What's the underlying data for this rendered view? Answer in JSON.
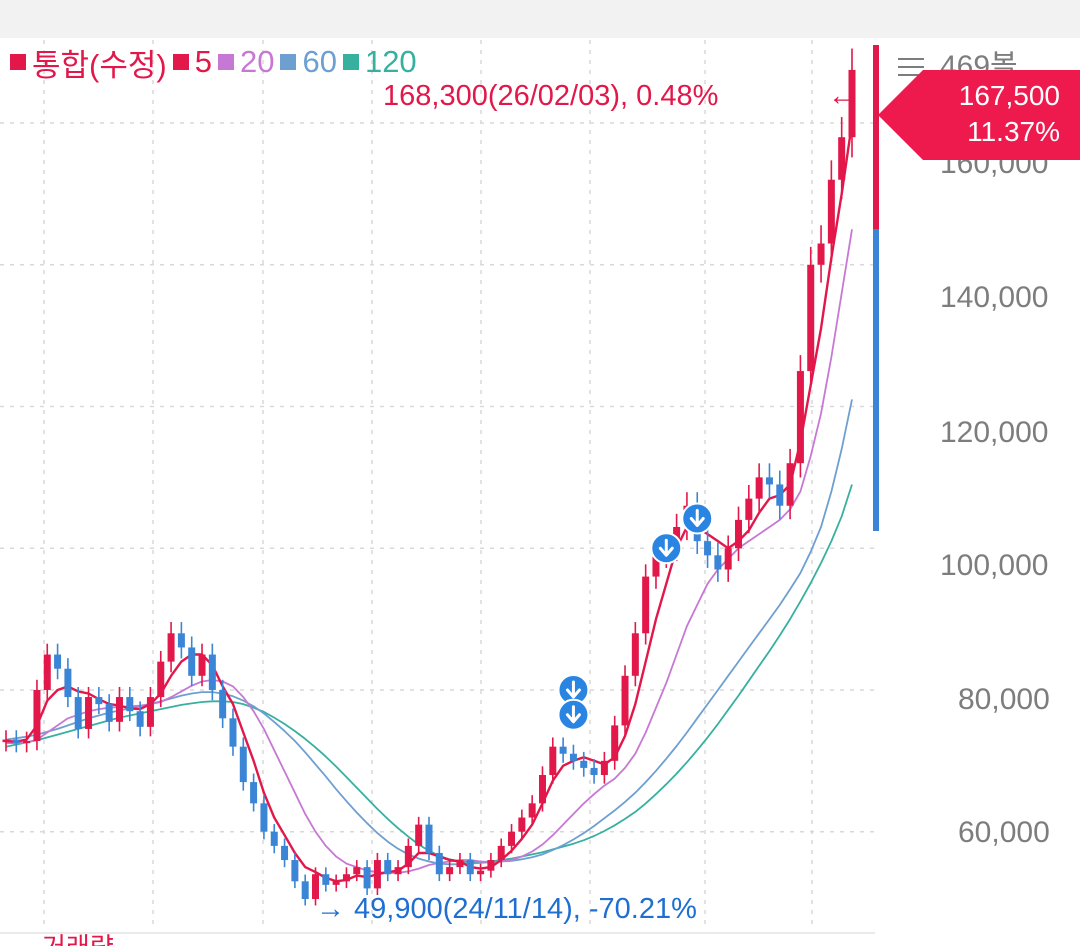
{
  "chart_data": {
    "type": "line",
    "title": "통합(수정)",
    "legend": [
      {
        "key": "price",
        "label": "통합(수정)",
        "color": "#e2174a"
      },
      {
        "key": "ma5",
        "label": "5",
        "color": "#e2174a"
      },
      {
        "key": "ma20",
        "label": "20",
        "color": "#c778d4"
      },
      {
        "key": "ma60",
        "label": "60",
        "color": "#6e9fd1"
      },
      {
        "key": "ma120",
        "label": "120",
        "color": "#37b0a0"
      }
    ],
    "ylim": [
      45000,
      172000
    ],
    "y_ticks": [
      {
        "value": 60000,
        "label": "60,000"
      },
      {
        "value": 80000,
        "label": "80,000"
      },
      {
        "value": 100000,
        "label": "100,000"
      },
      {
        "value": 120000,
        "label": "120,000"
      },
      {
        "value": 140000,
        "label": "140,000"
      },
      {
        "value": 160000,
        "label": "160,000"
      }
    ],
    "y_tick_partial": "469볼",
    "series": [
      {
        "name": "price",
        "style": "candles",
        "values": [
          73000,
          72500,
          72800,
          80000,
          85000,
          83000,
          79000,
          74500,
          79000,
          78000,
          75500,
          79000,
          77000,
          74800,
          79000,
          84000,
          88000,
          86000,
          82000,
          85000,
          80000,
          76000,
          72000,
          67000,
          64000,
          60000,
          58000,
          56000,
          53000,
          50500,
          54000,
          52500,
          53000,
          54000,
          55000,
          52000,
          56000,
          54000,
          55000,
          58000,
          61000,
          57000,
          54000,
          55000,
          56000,
          54000,
          54500,
          56000,
          58000,
          60000,
          62000,
          64000,
          68000,
          72000,
          71000,
          70000,
          69000,
          68000,
          70000,
          75000,
          82000,
          88000,
          96000,
          99000,
          100000,
          103000,
          106000,
          101000,
          99000,
          97000,
          100000,
          104000,
          107000,
          110000,
          109000,
          106000,
          112000,
          125000,
          140000,
          143000,
          152000,
          158000,
          167500
        ]
      },
      {
        "name": "ma5",
        "values": [
          72800,
          72700,
          73000,
          75000,
          78500,
          80000,
          80500,
          79800,
          79500,
          78700,
          78000,
          77800,
          77400,
          77300,
          78000,
          79500,
          82000,
          84000,
          85000,
          85000,
          83500,
          80500,
          78000,
          74000,
          70000,
          65500,
          62000,
          59500,
          57000,
          55000,
          54300,
          53500,
          53000,
          53200,
          53800,
          53600,
          54000,
          54300,
          54500,
          55500,
          57000,
          57000,
          56500,
          56000,
          55800,
          55000,
          54800,
          55000,
          56000,
          57300,
          59000,
          61000,
          64000,
          67200,
          69300,
          70000,
          70500,
          70000,
          69500,
          70500,
          73500,
          78000,
          84000,
          90000,
          95000,
          100000,
          103000,
          103000,
          102000,
          101000,
          100000,
          101000,
          102500,
          105000,
          107000,
          107500,
          109000,
          115000,
          123000,
          131000,
          141000,
          150000,
          160000
        ]
      },
      {
        "name": "ma20",
        "values": [
          72500,
          72500,
          72600,
          73000,
          74000,
          75000,
          76000,
          76500,
          77000,
          77300,
          77500,
          77600,
          77700,
          77800,
          78000,
          78300,
          79000,
          79800,
          80600,
          81200,
          81400,
          81200,
          80500,
          79000,
          77000,
          74500,
          71500,
          68500,
          65500,
          62500,
          60000,
          58000,
          56500,
          55500,
          55000,
          54500,
          54300,
          54200,
          54200,
          54400,
          54800,
          55300,
          55600,
          55800,
          56000,
          56000,
          55800,
          55700,
          55800,
          56000,
          56500,
          57200,
          58200,
          59500,
          61000,
          62500,
          64000,
          65300,
          66500,
          67500,
          69000,
          71000,
          74000,
          77500,
          81000,
          85000,
          89000,
          92000,
          95000,
          97000,
          98500,
          100000,
          101000,
          102000,
          103000,
          104000,
          105500,
          108000,
          113000,
          119000,
          127000,
          136000,
          145000
        ]
      },
      {
        "name": "ma60",
        "values": [
          73000,
          73200,
          73400,
          73700,
          74100,
          74500,
          75000,
          75500,
          76000,
          76400,
          76800,
          77100,
          77400,
          77700,
          78000,
          78400,
          78800,
          79200,
          79500,
          79700,
          79700,
          79500,
          79100,
          78500,
          77700,
          76700,
          75500,
          74200,
          72800,
          71200,
          69500,
          67800,
          66000,
          64300,
          62700,
          61200,
          59800,
          58600,
          57600,
          56800,
          56200,
          55800,
          55500,
          55400,
          55400,
          55500,
          55600,
          55700,
          55800,
          55900,
          56100,
          56400,
          56800,
          57400,
          58100,
          58900,
          59800,
          60800,
          61900,
          63000,
          64200,
          65500,
          67000,
          68600,
          70300,
          72100,
          74000,
          76000,
          78000,
          80000,
          82000,
          84000,
          86000,
          88000,
          90000,
          92000,
          94200,
          96500,
          99500,
          103000,
          108000,
          114000,
          121000
        ]
      },
      {
        "name": "ma120",
        "values": [
          72000,
          72300,
          72600,
          72900,
          73300,
          73700,
          74100,
          74500,
          74900,
          75300,
          75700,
          76100,
          76400,
          76700,
          77000,
          77300,
          77600,
          77900,
          78100,
          78300,
          78400,
          78400,
          78300,
          78000,
          77500,
          76900,
          76100,
          75200,
          74200,
          73100,
          71900,
          70600,
          69200,
          67700,
          66200,
          64700,
          63200,
          61800,
          60500,
          59300,
          58200,
          57300,
          56600,
          56100,
          55800,
          55700,
          55700,
          55800,
          56000,
          56200,
          56500,
          56800,
          57100,
          57500,
          57900,
          58300,
          58800,
          59400,
          60100,
          60900,
          61800,
          62800,
          64000,
          65300,
          66700,
          68200,
          69800,
          71500,
          73300,
          75200,
          77200,
          79200,
          81300,
          83400,
          85500,
          87700,
          90000,
          92500,
          95100,
          97900,
          101000,
          104500,
          109000
        ]
      }
    ],
    "current_price": {
      "value": "167,500",
      "change": "11.37%"
    },
    "high_annotation": "168,300(26/02/03), 0.48%",
    "low_annotation": "49,900(24/11/14), -70.21%",
    "signal_markers": [
      {
        "index": 55,
        "value": 80000
      },
      {
        "index": 55,
        "value": 76500
      },
      {
        "index": 64,
        "value": 100000
      },
      {
        "index": 67,
        "value": 104200
      }
    ],
    "colors": {
      "up": "#e2174a",
      "down": "#3b85d6",
      "grid": "#d9d9d9",
      "marker": "#2a84e2"
    }
  },
  "ui": {
    "bottom_text": "거래량"
  }
}
